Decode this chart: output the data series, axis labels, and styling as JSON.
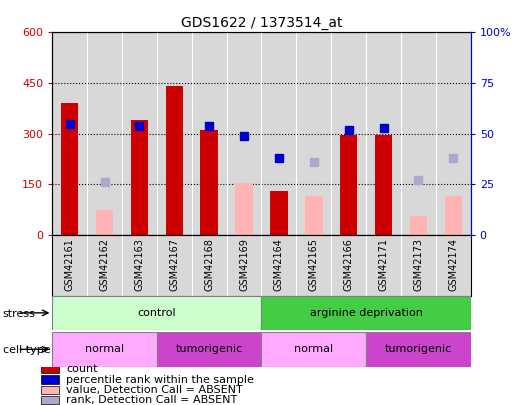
{
  "title": "GDS1622 / 1373514_at",
  "samples": [
    "GSM42161",
    "GSM42162",
    "GSM42163",
    "GSM42167",
    "GSM42168",
    "GSM42169",
    "GSM42164",
    "GSM42165",
    "GSM42166",
    "GSM42171",
    "GSM42173",
    "GSM42174"
  ],
  "count_values": [
    390,
    null,
    340,
    440,
    310,
    null,
    130,
    null,
    295,
    295,
    null,
    null
  ],
  "count_absent": [
    null,
    75,
    null,
    null,
    null,
    155,
    null,
    115,
    null,
    null,
    55,
    115
  ],
  "rank_values_pct": [
    55,
    null,
    54,
    null,
    54,
    49,
    38,
    null,
    52,
    53,
    null,
    null
  ],
  "rank_absent_pct": [
    null,
    26,
    null,
    null,
    null,
    null,
    null,
    36,
    null,
    null,
    27,
    38
  ],
  "ylim_left": [
    0,
    600
  ],
  "ylim_right": [
    0,
    100
  ],
  "yticks_left": [
    0,
    150,
    300,
    450,
    600
  ],
  "yticks_right": [
    0,
    25,
    50,
    75,
    100
  ],
  "ytick_labels_left": [
    "0",
    "150",
    "300",
    "450",
    "600"
  ],
  "ytick_labels_right": [
    "0",
    "25",
    "50",
    "75",
    "100%"
  ],
  "count_color": "#cc0000",
  "count_absent_color": "#ffb3b3",
  "rank_color": "#0000cc",
  "rank_absent_color": "#aaaacc",
  "bg_color": "#d8d8d8",
  "stress_groups": [
    {
      "label": "control",
      "start": 0,
      "end": 6,
      "color": "#ccffcc"
    },
    {
      "label": "arginine deprivation",
      "start": 6,
      "end": 12,
      "color": "#44cc44"
    }
  ],
  "cell_type_groups": [
    {
      "label": "normal",
      "start": 0,
      "end": 3,
      "color": "#ffaaff"
    },
    {
      "label": "tumorigenic",
      "start": 3,
      "end": 6,
      "color": "#cc44cc"
    },
    {
      "label": "normal",
      "start": 6,
      "end": 9,
      "color": "#ffaaff"
    },
    {
      "label": "tumorigenic",
      "start": 9,
      "end": 12,
      "color": "#cc44cc"
    }
  ],
  "stress_label": "stress",
  "cell_type_label": "cell type",
  "legend_items": [
    {
      "label": "count",
      "color": "#cc0000"
    },
    {
      "label": "percentile rank within the sample",
      "color": "#0000cc"
    },
    {
      "label": "value, Detection Call = ABSENT",
      "color": "#ffb3b3"
    },
    {
      "label": "rank, Detection Call = ABSENT",
      "color": "#aaaacc"
    }
  ]
}
